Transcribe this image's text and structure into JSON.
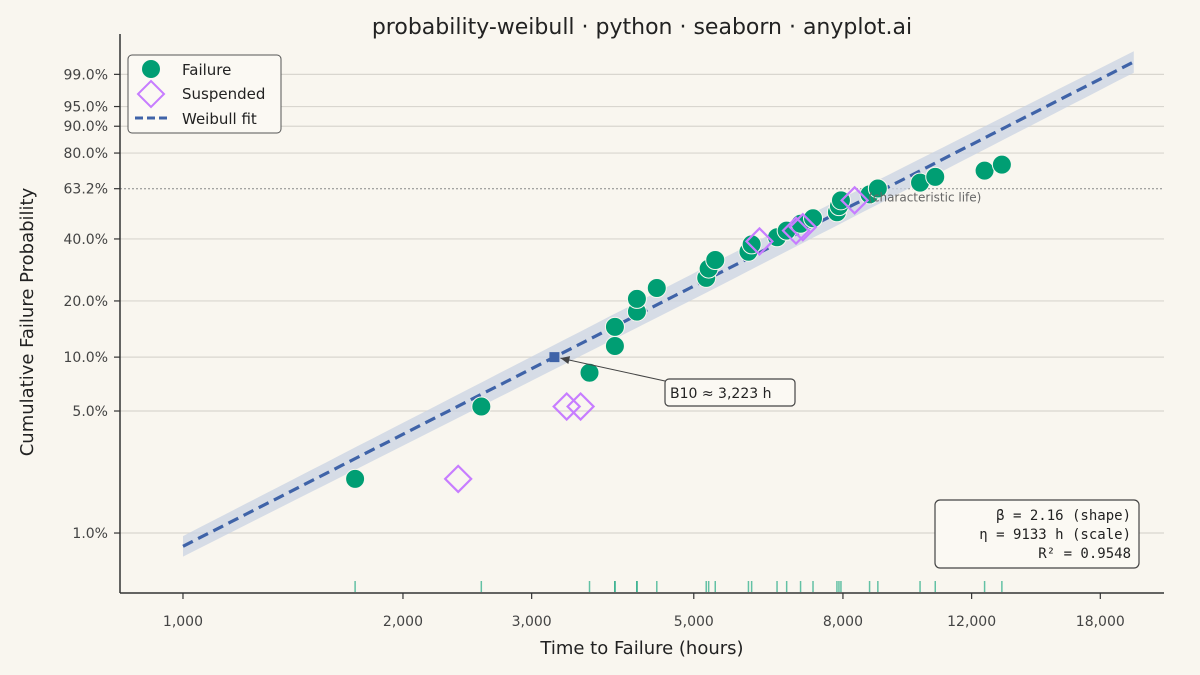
{
  "chart_data": {
    "type": "scatter",
    "title": "probability-weibull · python · seaborn · anyplot.ai",
    "xlabel": "Time to Failure (hours)",
    "ylabel": "Cumulative Failure Probability",
    "x_scale": "log",
    "y_scale": "weibull probability",
    "xlim": [
      820,
      22000
    ],
    "ylim": [
      0.0045,
      0.999
    ],
    "x_ticks": [
      1000,
      2000,
      3000,
      5000,
      8000,
      12000,
      18000
    ],
    "x_tick_labels": [
      "1,000",
      "2,000",
      "3,000",
      "5,000",
      "8,000",
      "12,000",
      "18,000"
    ],
    "y_ticks": [
      0.01,
      0.05,
      0.1,
      0.2,
      0.4,
      0.632,
      0.8,
      0.9,
      0.95,
      0.99
    ],
    "y_tick_labels": [
      "1.0%",
      "5.0%",
      "10.0%",
      "20.0%",
      "40.0%",
      "63.2%",
      "80.0%",
      "90.0%",
      "95.0%",
      "99.0%"
    ],
    "grid": "horizontal",
    "legend_position": "top-left",
    "colors": {
      "failure": "#009e73",
      "suspended": "#c77dff",
      "fit": "#3f63a8",
      "band": "#c9d3e3"
    },
    "series": [
      {
        "name": "Failure",
        "marker": "circle",
        "x": [
          1720,
          2560,
          3600,
          3900,
          3900,
          4180,
          4180,
          4450,
          5200,
          5240,
          5350,
          5940,
          6000,
          6500,
          6700,
          7000,
          7280,
          7850,
          7900,
          7950,
          8700,
          8930,
          10200,
          10700,
          12500,
          13200
        ],
        "y": [
          0.0205,
          0.053,
          0.082,
          0.115,
          0.146,
          0.176,
          0.205,
          0.233,
          0.262,
          0.291,
          0.32,
          0.35,
          0.378,
          0.407,
          0.435,
          0.465,
          0.49,
          0.518,
          0.547,
          0.575,
          0.604,
          0.633,
          0.662,
          0.69,
          0.72,
          0.748
        ]
      },
      {
        "name": "Suspended",
        "marker": "diamond",
        "x": [
          2380,
          3350,
          3500,
          6150,
          6900,
          7050,
          8300
        ],
        "y": [
          0.0205,
          0.053,
          0.053,
          0.39,
          0.435,
          0.45,
          0.575
        ]
      },
      {
        "name": "Weibull fit",
        "line": "dashed",
        "beta": 2.16,
        "eta": 9133,
        "x_range": [
          1000,
          20000
        ]
      }
    ],
    "rug": {
      "x": [
        1720,
        2560,
        3600,
        3900,
        3900,
        4180,
        4180,
        4450,
        5200,
        5240,
        5350,
        5940,
        6000,
        6500,
        6700,
        7000,
        7280,
        7850,
        7900,
        7950,
        8700,
        8930,
        10200,
        10700,
        12500,
        13200
      ]
    },
    "annotations": {
      "b10_label": "B10 ≈ 3,223 h",
      "b10_x": 3223,
      "b10_y": 0.1,
      "char_life_label": "(characteristic life)",
      "char_life_y": 0.632,
      "stats_line1": "β = 2.16  (shape)",
      "stats_line2": "η = 9133 h  (scale)",
      "stats_line3": "R² = 0.9548"
    }
  }
}
